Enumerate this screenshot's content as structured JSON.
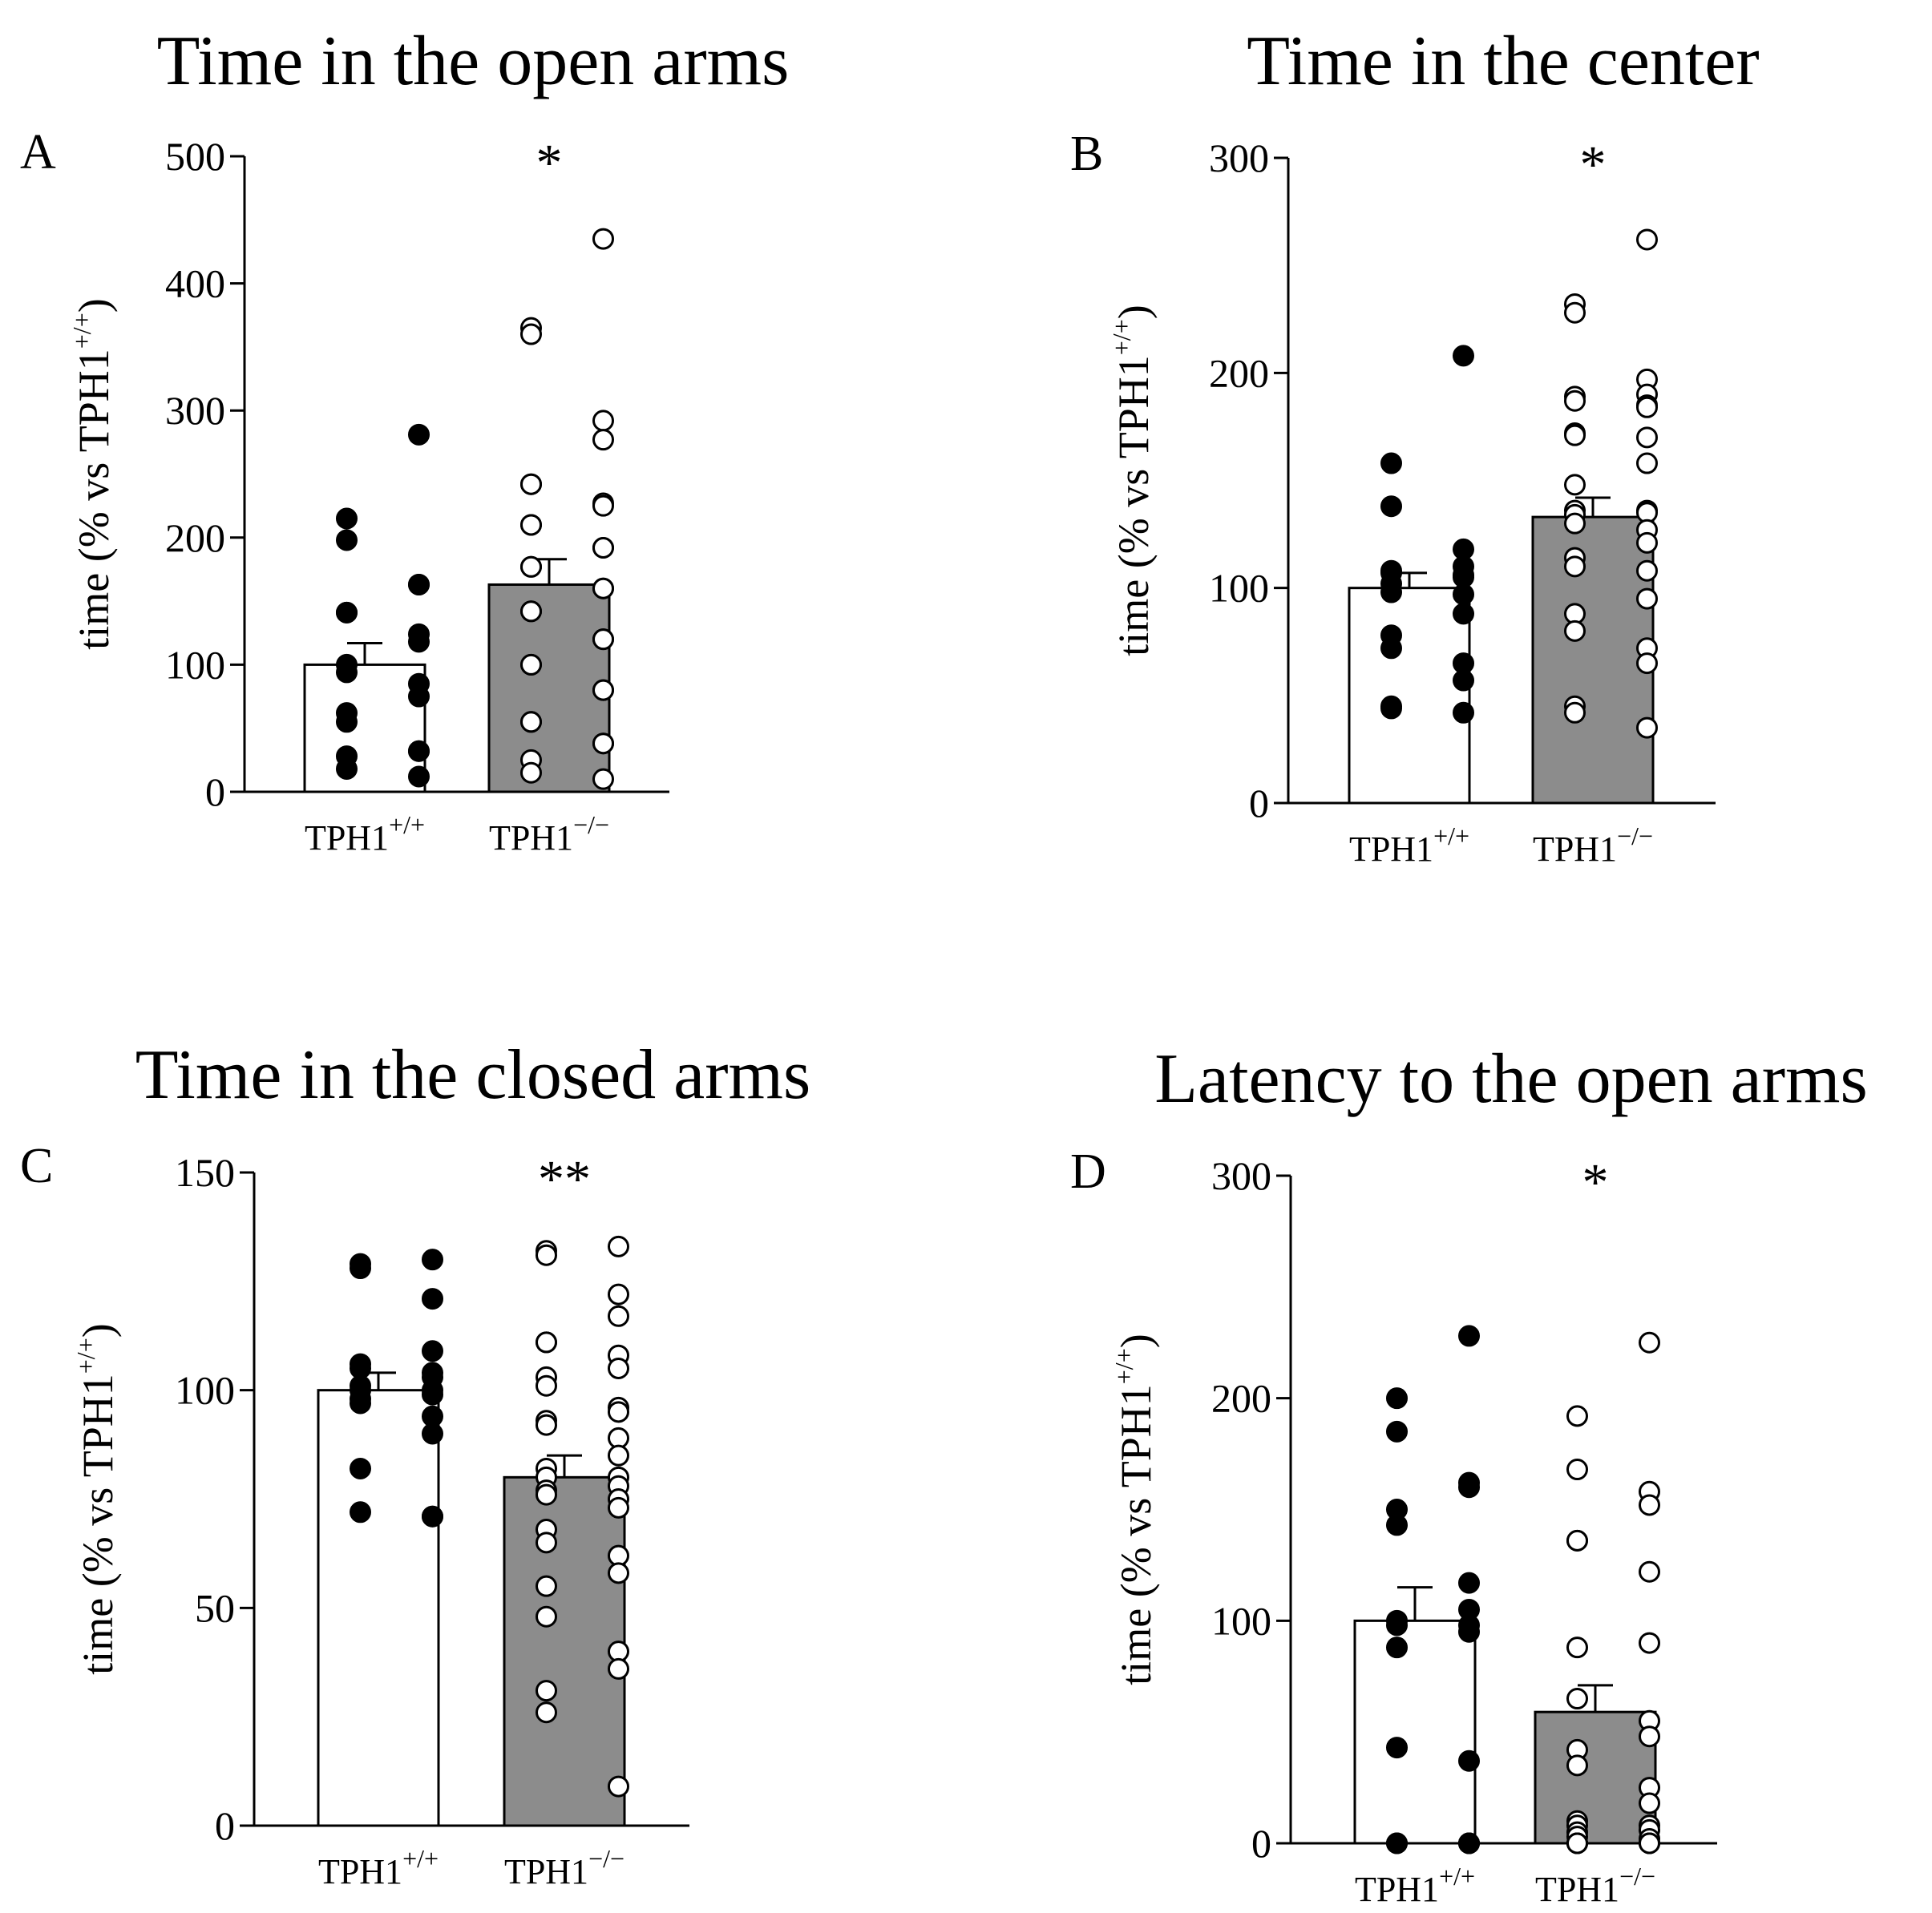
{
  "figure": {
    "panels": [
      {
        "letter": "A",
        "chart_data": {
          "type": "bar",
          "title": "Time in the open arms",
          "ylabel": "time (% vs TPH1+/+)",
          "ylim": [
            0,
            500
          ],
          "yticks": [
            0,
            100,
            200,
            300,
            400,
            500
          ],
          "categories": [
            "TPH1+/+",
            "TPH1−/−"
          ],
          "values": [
            100,
            163
          ],
          "errors": [
            17,
            20
          ],
          "bar_colors": [
            "#ffffff",
            "#8c8c8c"
          ],
          "significance": "*",
          "points": [
            [
              281,
              215,
              198,
              163,
              163,
              141,
              141,
              124,
              118,
              100,
              94,
              85,
              75,
              62,
              55,
              32,
              32,
              28,
              18,
              12
            ],
            [
              435,
              365,
              360,
              292,
              277,
              242,
              242,
              227,
              225,
              210,
              210,
              192,
              192,
              177,
              177,
              160,
              160,
              142,
              142,
              120,
              120,
              100,
              100,
              80,
              80,
              55,
              55,
              38,
              38,
              25,
              15,
              10
            ]
          ]
        }
      },
      {
        "letter": "B",
        "chart_data": {
          "type": "bar",
          "title": "Time in the center",
          "ylabel": "time (% vs TPH1+/+)",
          "ylim": [
            0,
            300
          ],
          "yticks": [
            0,
            100,
            200,
            300
          ],
          "categories": [
            "TPH1+/+",
            "TPH1−/−"
          ],
          "values": [
            100,
            133
          ],
          "errors": [
            7,
            9
          ],
          "bar_colors": [
            "#ffffff",
            "#8c8c8c"
          ],
          "significance": "*",
          "points": [
            [
              208,
              158,
              138,
              118,
              110,
              108,
              107,
              106,
              105,
              102,
              98,
              97,
              88,
              78,
              72,
              65,
              57,
              45,
              44,
              42
            ],
            [
              262,
              232,
              228,
              197,
              190,
              189,
              187,
              185,
              184,
              172,
              171,
              170,
              158,
              148,
              136,
              136,
              135,
              134,
              130,
              127,
              121,
              114,
              110,
              108,
              95,
              88,
              80,
              72,
              65,
              45,
              42,
              35
            ]
          ]
        }
      },
      {
        "letter": "C",
        "chart_data": {
          "type": "bar",
          "title": "Time in the closed arms",
          "ylabel": "time (% vs TPH1+/+)",
          "ylim": [
            0,
            150
          ],
          "yticks": [
            0,
            50,
            100,
            150
          ],
          "categories": [
            "TPH1+/+",
            "TPH1−/−"
          ],
          "values": [
            100,
            80
          ],
          "errors": [
            4,
            5
          ],
          "bar_colors": [
            "#ffffff",
            "#8c8c8c"
          ],
          "significance": "**",
          "points": [
            [
              130,
              129,
              128,
              121,
              109,
              106,
              105,
              104,
              103,
              101,
              100,
              100,
              99,
              98,
              97,
              94,
              90,
              82,
              72,
              71,
              71
            ],
            [
              133,
              132,
              131,
              122,
              117,
              111,
              111,
              108,
              105,
              103,
              101,
              96,
              95,
              93,
              92,
              89,
              85,
              82,
              80,
              80,
              78,
              77,
              76,
              75,
              73,
              68,
              65,
              62,
              58,
              55,
              48,
              40,
              36,
              31,
              26,
              9
            ]
          ]
        }
      },
      {
        "letter": "D",
        "chart_data": {
          "type": "bar",
          "title": "Latency to the open arms",
          "ylabel": "time (% vs TPH1+/+)",
          "ylim": [
            0,
            300
          ],
          "yticks": [
            0,
            100,
            200,
            300
          ],
          "categories": [
            "TPH1+/+",
            "TPH1−/−"
          ],
          "values": [
            100,
            59
          ],
          "errors": [
            15,
            12
          ],
          "bar_colors": [
            "#ffffff",
            "#8c8c8c"
          ],
          "significance": "*",
          "points": [
            [
              228,
              200,
              185,
              162,
              160,
              150,
              143,
              117,
              105,
              100,
              98,
              98,
              95,
              88,
              43,
              37,
              0,
              0,
              0,
              0,
              0
            ],
            [
              225,
              192,
              168,
              158,
              152,
              136,
              136,
              122,
              90,
              88,
              65,
              55,
              48,
              42,
              35,
              25,
              18,
              10,
              8,
              8,
              6,
              5,
              3,
              2,
              0,
              0,
              0,
              0,
              0,
              0,
              0
            ]
          ]
        }
      }
    ]
  }
}
